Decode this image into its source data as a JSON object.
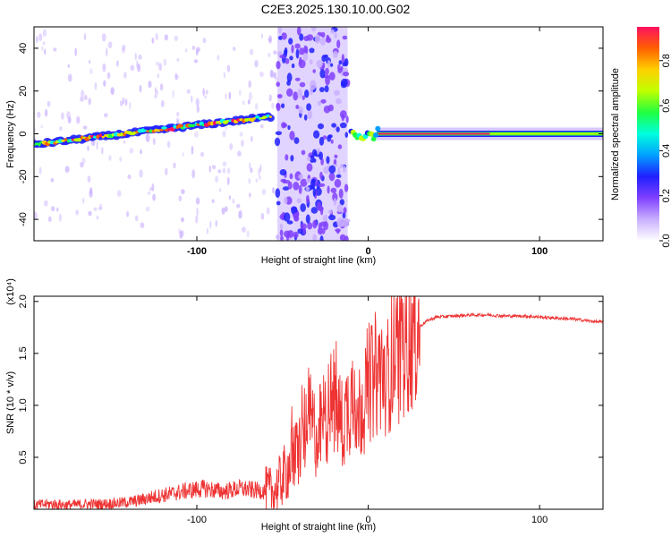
{
  "title": "C2E3.2025.130.10.00.G02",
  "colors": {
    "snr_line": "#ee3333",
    "axis": "#000000",
    "spectrogram_background": "#ffffff",
    "colormap": [
      "#ffffff",
      "#c9b0ff",
      "#8040ff",
      "#2020ff",
      "#00a0ff",
      "#00ffdd",
      "#20ff40",
      "#c0ff00",
      "#ffd000",
      "#ff6000",
      "#ff1060"
    ]
  },
  "chart_data": [
    {
      "type": "heatmap",
      "title": "",
      "xlabel": "Height of straight line (km)",
      "ylabel": "Frequency (Hz)",
      "xlim": [
        -195,
        137
      ],
      "ylim": [
        -50,
        50
      ],
      "x_ticks": [
        "-100",
        "0",
        "100"
      ],
      "y_ticks": [
        "40",
        "20",
        "0",
        "-20",
        "-40"
      ],
      "grid": false,
      "colorbar": {
        "label": "Normalized spectral amplitude",
        "range": [
          0,
          0.95
        ],
        "ticks": [
          "0.0",
          "0.2",
          "0.4",
          "0.6",
          "0.8"
        ]
      },
      "features": [
        {
          "description": "dominant frequency ridge rising with height",
          "x_range": [
            -195,
            -57
          ],
          "frequency_start": -5,
          "frequency_end": 8
        },
        {
          "description": "broadband noise band",
          "x_range": [
            -53,
            -12
          ],
          "frequency_range": [
            -50,
            50
          ]
        },
        {
          "description": "steady signal near zero frequency",
          "x_range": [
            5,
            137
          ],
          "frequency": 0
        }
      ]
    },
    {
      "type": "line",
      "title": "",
      "xlabel": "Height of straight line (km)",
      "ylabel": "SNR (10 * v/v)",
      "scale_label": "(x10⁴)",
      "xlim": [
        -195,
        137
      ],
      "ylim": [
        0,
        2.05
      ],
      "x_ticks": [
        "-100",
        "0",
        "100"
      ],
      "y_ticks": [
        "0.5",
        "1.0",
        "1.5",
        "2.0"
      ],
      "grid": false,
      "series": [
        {
          "x": [
            -195,
            -185,
            -175,
            -165,
            -155,
            -145,
            -135,
            -125,
            -115,
            -105,
            -95,
            -85,
            -75,
            -65,
            -55,
            -50,
            -45,
            -40,
            -35,
            -30,
            -25,
            -20,
            -15,
            -10,
            -5,
            0,
            5,
            10,
            15,
            20,
            25,
            30,
            35,
            40,
            50,
            60,
            70,
            80,
            90,
            100,
            110,
            120,
            130,
            137
          ],
          "values": [
            0.04,
            0.05,
            0.04,
            0.05,
            0.05,
            0.06,
            0.08,
            0.12,
            0.15,
            0.18,
            0.2,
            0.17,
            0.2,
            0.18,
            0.17,
            0.3,
            0.45,
            0.6,
            0.9,
            0.7,
            0.9,
            1.05,
            0.8,
            1.1,
            0.95,
            1.2,
            1.3,
            1.35,
            1.45,
            1.55,
            1.68,
            1.76,
            1.82,
            1.85,
            1.86,
            1.87,
            1.87,
            1.86,
            1.86,
            1.85,
            1.84,
            1.83,
            1.81,
            1.8
          ]
        }
      ]
    }
  ]
}
